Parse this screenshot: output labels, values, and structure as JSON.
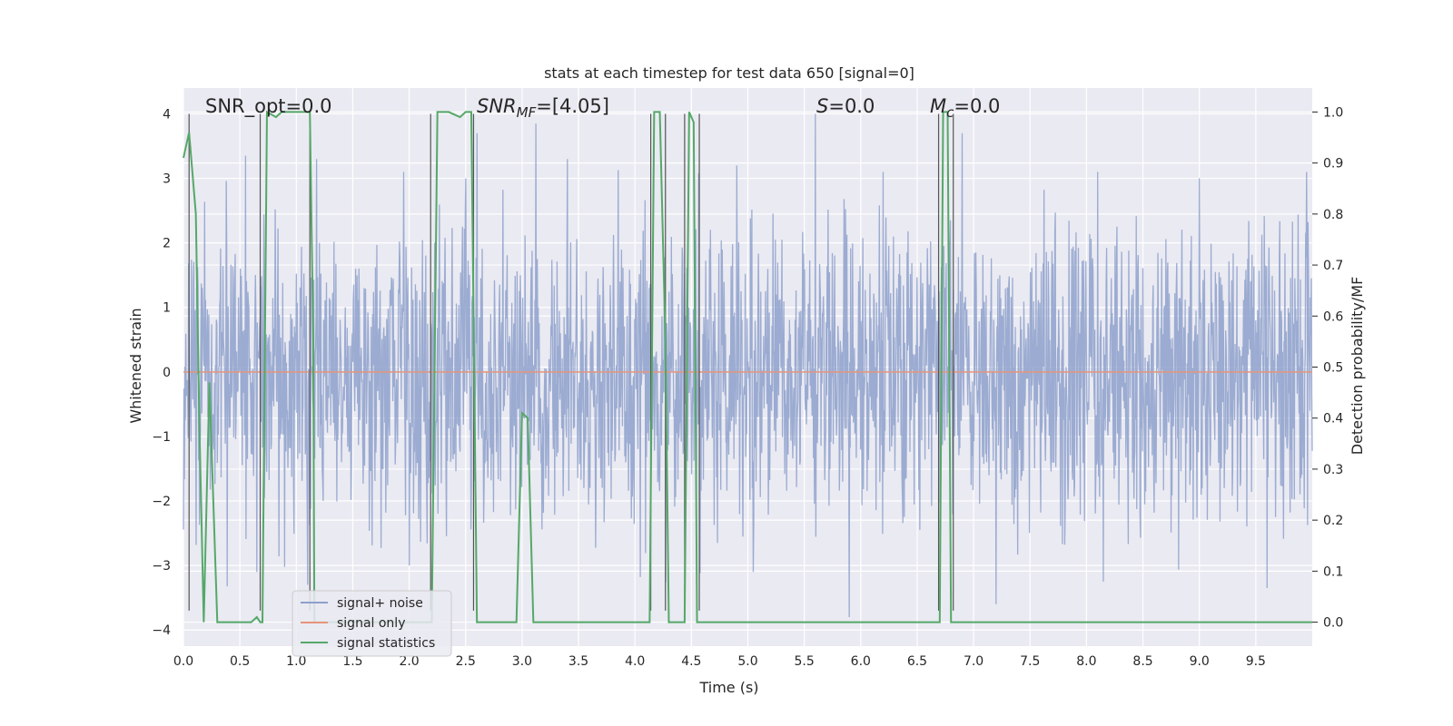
{
  "chart_data": {
    "type": "line",
    "title": "stats at each timestep for test data 650 [signal=0]",
    "xlabel": "Time (s)",
    "ylabel_left": "Whitened strain",
    "ylabel_right": "Detection probability/MF",
    "xlim": [
      0,
      10
    ],
    "ylim_left": [
      -4.25,
      4.4
    ],
    "ylim_right": [
      -0.047,
      1.047
    ],
    "grid": true,
    "x_ticks": [
      "0.0",
      "0.5",
      "1.0",
      "1.5",
      "2.0",
      "2.5",
      "3.0",
      "3.5",
      "4.0",
      "4.5",
      "5.0",
      "5.5",
      "6.0",
      "6.5",
      "7.0",
      "7.5",
      "8.0",
      "8.5",
      "9.0",
      "9.5"
    ],
    "y_ticks_left": [
      "4",
      "3",
      "2",
      "1",
      "0",
      "−1",
      "−2",
      "−3",
      "−4"
    ],
    "y_ticks_right": [
      "1.0",
      "0.9",
      "0.8",
      "0.7",
      "0.6",
      "0.5",
      "0.4",
      "0.3",
      "0.2",
      "0.1",
      "0.0"
    ],
    "legend": {
      "placement": "lower-left",
      "entries": [
        "signal+ noise",
        "signal only",
        "signal statistics"
      ]
    },
    "annotations": {
      "snr_opt": {
        "label": "SNR_opt=0.0"
      },
      "snr_mf": {
        "sym": "SNR",
        "sub": "MF",
        "rest": "=[4.05]"
      },
      "s": {
        "sym": "S",
        "rest": "=0.0"
      },
      "mc": {
        "sym": "M",
        "sub": "c",
        "rest": "=0.0"
      }
    },
    "series": [
      {
        "name": "signal+ noise",
        "color": "#8da0cb",
        "noise_envelope": {
          "typical_amplitude": 1.6,
          "peak_min": -3.6,
          "peak_max": 4.0,
          "samples": 2400
        },
        "spikes": [
          [
            0.55,
            3.35
          ],
          [
            0.65,
            3.0
          ],
          [
            1.18,
            3.3
          ],
          [
            1.95,
            3.1
          ],
          [
            2.5,
            3.0
          ],
          [
            2.6,
            3.7
          ],
          [
            3.4,
            3.3
          ],
          [
            4.9,
            3.2
          ],
          [
            5.6,
            4.0
          ],
          [
            6.2,
            3.1
          ],
          [
            6.9,
            3.7
          ],
          [
            8.1,
            3.1
          ],
          [
            9.0,
            3.0
          ],
          [
            9.95,
            3.1
          ],
          [
            0.65,
            -3.1
          ],
          [
            1.1,
            -3.3
          ],
          [
            2.0,
            -3.0
          ],
          [
            5.05,
            -3.1
          ],
          [
            5.9,
            -3.8
          ],
          [
            7.2,
            -3.6
          ],
          [
            8.15,
            -3.25
          ],
          [
            9.6,
            -3.35
          ]
        ]
      },
      {
        "name": "signal only",
        "color": "#e5957a",
        "x": [
          0,
          10
        ],
        "y": [
          0,
          0
        ]
      },
      {
        "name": "signal statistics",
        "color": "#55a868",
        "axis": "right",
        "x": [
          0.0,
          0.05,
          0.11,
          0.14,
          0.18,
          0.23,
          0.3,
          0.6,
          0.65,
          0.68,
          0.7,
          0.74,
          0.82,
          0.87,
          0.9,
          1.0,
          1.1,
          1.12,
          1.15,
          1.16,
          1.2,
          1.25,
          1.3,
          1.35,
          1.4,
          2.1,
          2.2,
          2.25,
          2.35,
          2.45,
          2.5,
          2.55,
          2.6,
          2.65,
          2.7,
          2.95,
          3.0,
          3.05,
          3.1,
          3.15,
          3.2,
          4.1,
          4.13,
          4.17,
          4.22,
          4.27,
          4.3,
          4.35,
          4.38,
          4.42,
          4.44,
          4.48,
          4.52,
          4.55,
          4.58,
          4.6,
          4.7,
          6.65,
          6.7,
          6.73,
          6.77,
          6.8,
          6.85,
          6.88,
          6.95,
          10.0
        ],
        "y": [
          0.91,
          0.96,
          0.8,
          0.4,
          0.0,
          0.47,
          0.0,
          0.0,
          0.01,
          0.0,
          0.0,
          1.0,
          0.99,
          1.0,
          1.0,
          1.0,
          1.0,
          1.0,
          0.55,
          0.0,
          0.0,
          0.0,
          0.0,
          0.0,
          0.0,
          0.0,
          0.0,
          1.0,
          1.0,
          0.99,
          1.0,
          1.0,
          0.0,
          0.0,
          0.0,
          0.0,
          0.41,
          0.4,
          0.0,
          0.0,
          0.0,
          0.0,
          0.0,
          1.0,
          1.0,
          0.55,
          0.0,
          0.0,
          0.0,
          0.0,
          0.0,
          1.0,
          0.98,
          0.0,
          0.0,
          0.0,
          0.0,
          0.0,
          0.0,
          1.0,
          1.0,
          0.0,
          0.0,
          0.0,
          0.0,
          0.0
        ]
      }
    ],
    "vertical_markers": {
      "color": "#555555",
      "x": [
        0.05,
        0.68,
        1.12,
        2.19,
        2.57,
        4.14,
        4.27,
        4.44,
        4.57,
        6.69,
        6.82
      ],
      "y_range": [
        -3.7,
        4.0
      ]
    }
  }
}
